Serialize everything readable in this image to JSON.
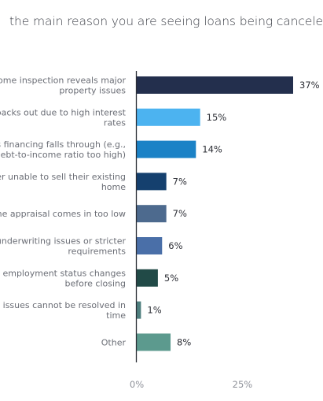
{
  "chart_data": {
    "type": "bar",
    "orientation": "horizontal",
    "title": "the main reason you are seeing loans being cancele",
    "xlabel": "",
    "ylabel": "",
    "xlim": [
      0,
      37
    ],
    "grid": false,
    "categories": [
      [
        "ome inspection reveals major",
        "property issues"
      ],
      [
        "backs out due to high interest",
        "rates"
      ],
      [
        "s financing falls through (e.g.,",
        "ebt-to-income ratio too high)"
      ],
      [
        "ver unable to sell their existing",
        "home"
      ],
      [
        "me appraisal comes in too low"
      ],
      [
        " underwriting issues or stricter",
        "requirements"
      ],
      [
        "s employment status changes",
        "before closing"
      ],
      [
        "e issues cannot be resolved in",
        "time"
      ],
      [
        "Other"
      ]
    ],
    "values": [
      37,
      15,
      14,
      7,
      7,
      6,
      5,
      1,
      8
    ],
    "value_labels": [
      "37%",
      "15%",
      "14%",
      "7%",
      "7%",
      "6%",
      "5%",
      "1%",
      "8%"
    ],
    "colors": [
      "#232f4d",
      "#4cb3f0",
      "#1b82c6",
      "#15406e",
      "#4d6a8e",
      "#4a6fa8",
      "#214a47",
      "#4e7f7e",
      "#5c9a8e"
    ],
    "x_ticks": [
      0,
      25
    ],
    "x_tick_labels": [
      "0%",
      "25%"
    ]
  }
}
